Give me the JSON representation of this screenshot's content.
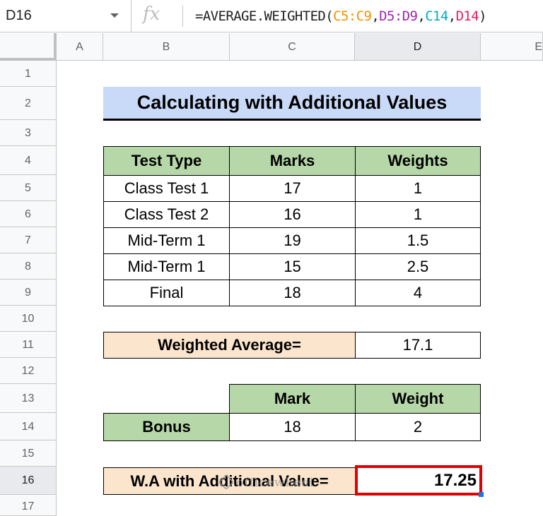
{
  "formula_bar": {
    "name_box": "D16",
    "fx_icon": "fx",
    "formula_parts": [
      "=AVERAGE.WEIGHTED(",
      "C5:C9",
      ",",
      "D5:D9",
      ",",
      "C14",
      ",",
      "D14",
      ")"
    ]
  },
  "columns": [
    "A",
    "B",
    "C",
    "D",
    "E"
  ],
  "rows": [
    "1",
    "2",
    "3",
    "4",
    "5",
    "6",
    "7",
    "8",
    "9",
    "10",
    "11",
    "12",
    "13",
    "14",
    "15",
    "16",
    "17"
  ],
  "title": "Calculating with Additional Values",
  "table": {
    "headers": [
      "Test Type",
      "Marks",
      "Weights"
    ],
    "rows": [
      [
        "Class Test 1",
        "17",
        "1"
      ],
      [
        "Class Test 2",
        "16",
        "1"
      ],
      [
        "Mid-Term 1",
        "19",
        "1.5"
      ],
      [
        "Mid-Term 1",
        "15",
        "2.5"
      ],
      [
        "Final",
        "18",
        "4"
      ]
    ]
  },
  "weighted_average": {
    "label": "Weighted Average=",
    "value": "17.1"
  },
  "bonus": {
    "headers": [
      "Mark",
      "Weight"
    ],
    "label": "Bonus",
    "mark": "18",
    "weight": "2"
  },
  "wa_additional": {
    "label": "W.A with Additional Value=",
    "value": "17.25"
  },
  "watermark": "officewheel",
  "colors": {
    "header_green": "#b6d7a8",
    "title_blue": "#c9daf8",
    "peach": "#fce5cd",
    "selection_red": "#e00000",
    "ref_orange": "#f09300",
    "ref_purple": "#9c27b0",
    "ref_teal": "#00acc1",
    "ref_pink": "#e91e63"
  }
}
